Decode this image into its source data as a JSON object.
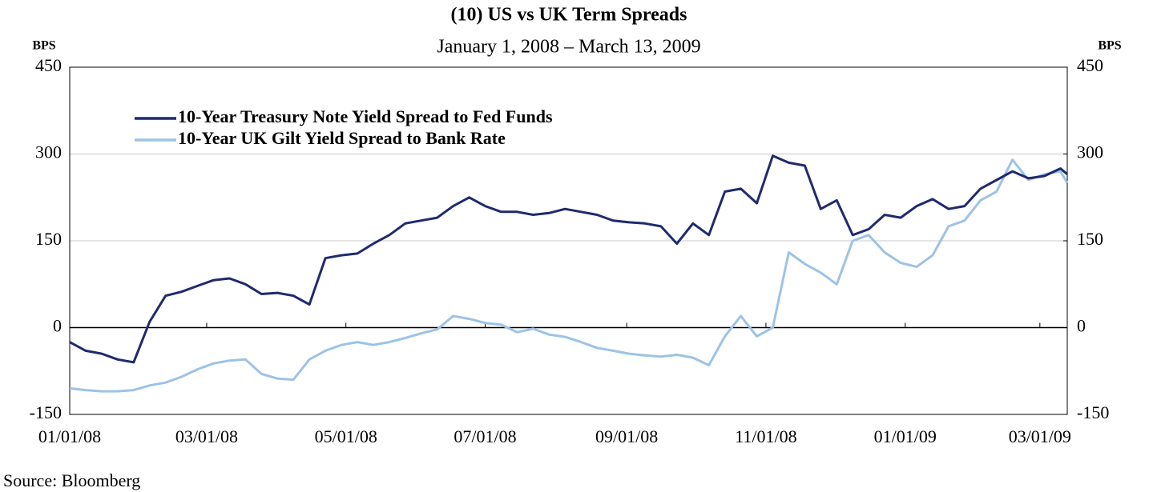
{
  "chart_data": {
    "type": "line",
    "title": "(10) US vs UK Term Spreads",
    "subtitle": "January 1, 2008 – March 13, 2009",
    "y_label": "BPS",
    "y2_label": "BPS",
    "source": "Source: Bloomberg",
    "x": [
      "2008-01-01",
      "2008-01-08",
      "2008-01-15",
      "2008-01-22",
      "2008-01-29",
      "2008-02-05",
      "2008-02-12",
      "2008-02-19",
      "2008-02-26",
      "2008-03-04",
      "2008-03-11",
      "2008-03-18",
      "2008-03-25",
      "2008-04-01",
      "2008-04-08",
      "2008-04-15",
      "2008-04-22",
      "2008-04-29",
      "2008-05-06",
      "2008-05-13",
      "2008-05-20",
      "2008-05-27",
      "2008-06-03",
      "2008-06-10",
      "2008-06-17",
      "2008-06-24",
      "2008-07-01",
      "2008-07-08",
      "2008-07-15",
      "2008-07-22",
      "2008-07-29",
      "2008-08-05",
      "2008-08-12",
      "2008-08-19",
      "2008-08-26",
      "2008-09-02",
      "2008-09-09",
      "2008-09-16",
      "2008-09-23",
      "2008-09-30",
      "2008-10-07",
      "2008-10-14",
      "2008-10-21",
      "2008-10-28",
      "2008-11-04",
      "2008-11-11",
      "2008-11-18",
      "2008-11-25",
      "2008-12-02",
      "2008-12-09",
      "2008-12-16",
      "2008-12-23",
      "2008-12-30",
      "2009-01-06",
      "2009-01-13",
      "2009-01-20",
      "2009-01-27",
      "2009-02-03",
      "2009-02-10",
      "2009-02-17",
      "2009-02-24",
      "2009-03-03",
      "2009-03-10",
      "2009-03-13"
    ],
    "series": [
      {
        "name": "10-Year Treasury Note Yield Spread to Fed Funds",
        "color": "#1f2a6e",
        "values": [
          -25,
          -40,
          -45,
          -55,
          -60,
          10,
          55,
          62,
          72,
          82,
          85,
          75,
          58,
          60,
          55,
          40,
          120,
          125,
          128,
          145,
          160,
          180,
          185,
          190,
          210,
          225,
          210,
          200,
          200,
          195,
          198,
          205,
          200,
          195,
          185,
          182,
          180,
          175,
          145,
          180,
          160,
          235,
          240,
          215,
          297,
          285,
          280,
          205,
          220,
          160,
          170,
          195,
          190,
          210,
          222,
          205,
          210,
          240,
          255,
          270,
          258,
          262,
          275,
          265
        ]
      },
      {
        "name": "10-Year UK Gilt Yield Spread to Bank Rate",
        "color": "#9cc3e6",
        "values": [
          -105,
          -108,
          -110,
          -110,
          -108,
          -100,
          -95,
          -85,
          -72,
          -62,
          -57,
          -55,
          -80,
          -88,
          -90,
          -55,
          -40,
          -30,
          -25,
          -30,
          -25,
          -18,
          -10,
          -3,
          20,
          15,
          8,
          5,
          -8,
          -2,
          -12,
          -16,
          -25,
          -35,
          -40,
          -45,
          -48,
          -50,
          -47,
          -52,
          -65,
          -15,
          20,
          -15,
          0,
          130,
          110,
          95,
          75,
          150,
          160,
          130,
          112,
          105,
          125,
          175,
          185,
          220,
          235,
          290,
          255,
          265,
          270,
          250
        ]
      }
    ],
    "xlim": [
      "2008-01-01",
      "2009-03-13"
    ],
    "xticks": [
      {
        "value": "2008-01-01",
        "label": "01/01/08"
      },
      {
        "value": "2008-03-01",
        "label": "03/01/08"
      },
      {
        "value": "2008-05-01",
        "label": "05/01/08"
      },
      {
        "value": "2008-07-01",
        "label": "07/01/08"
      },
      {
        "value": "2008-09-01",
        "label": "09/01/08"
      },
      {
        "value": "2008-11-01",
        "label": "11/01/08"
      },
      {
        "value": "2009-01-01",
        "label": "01/01/09"
      },
      {
        "value": "2009-03-01",
        "label": "03/01/09"
      }
    ],
    "ylim": [
      -150,
      450
    ],
    "yticks": [
      -150,
      0,
      150,
      300,
      450
    ],
    "y2lim": [
      -150,
      450
    ],
    "y2ticks": [
      -150,
      0,
      150,
      300,
      450
    ],
    "grid": true,
    "legend": "upper left"
  }
}
